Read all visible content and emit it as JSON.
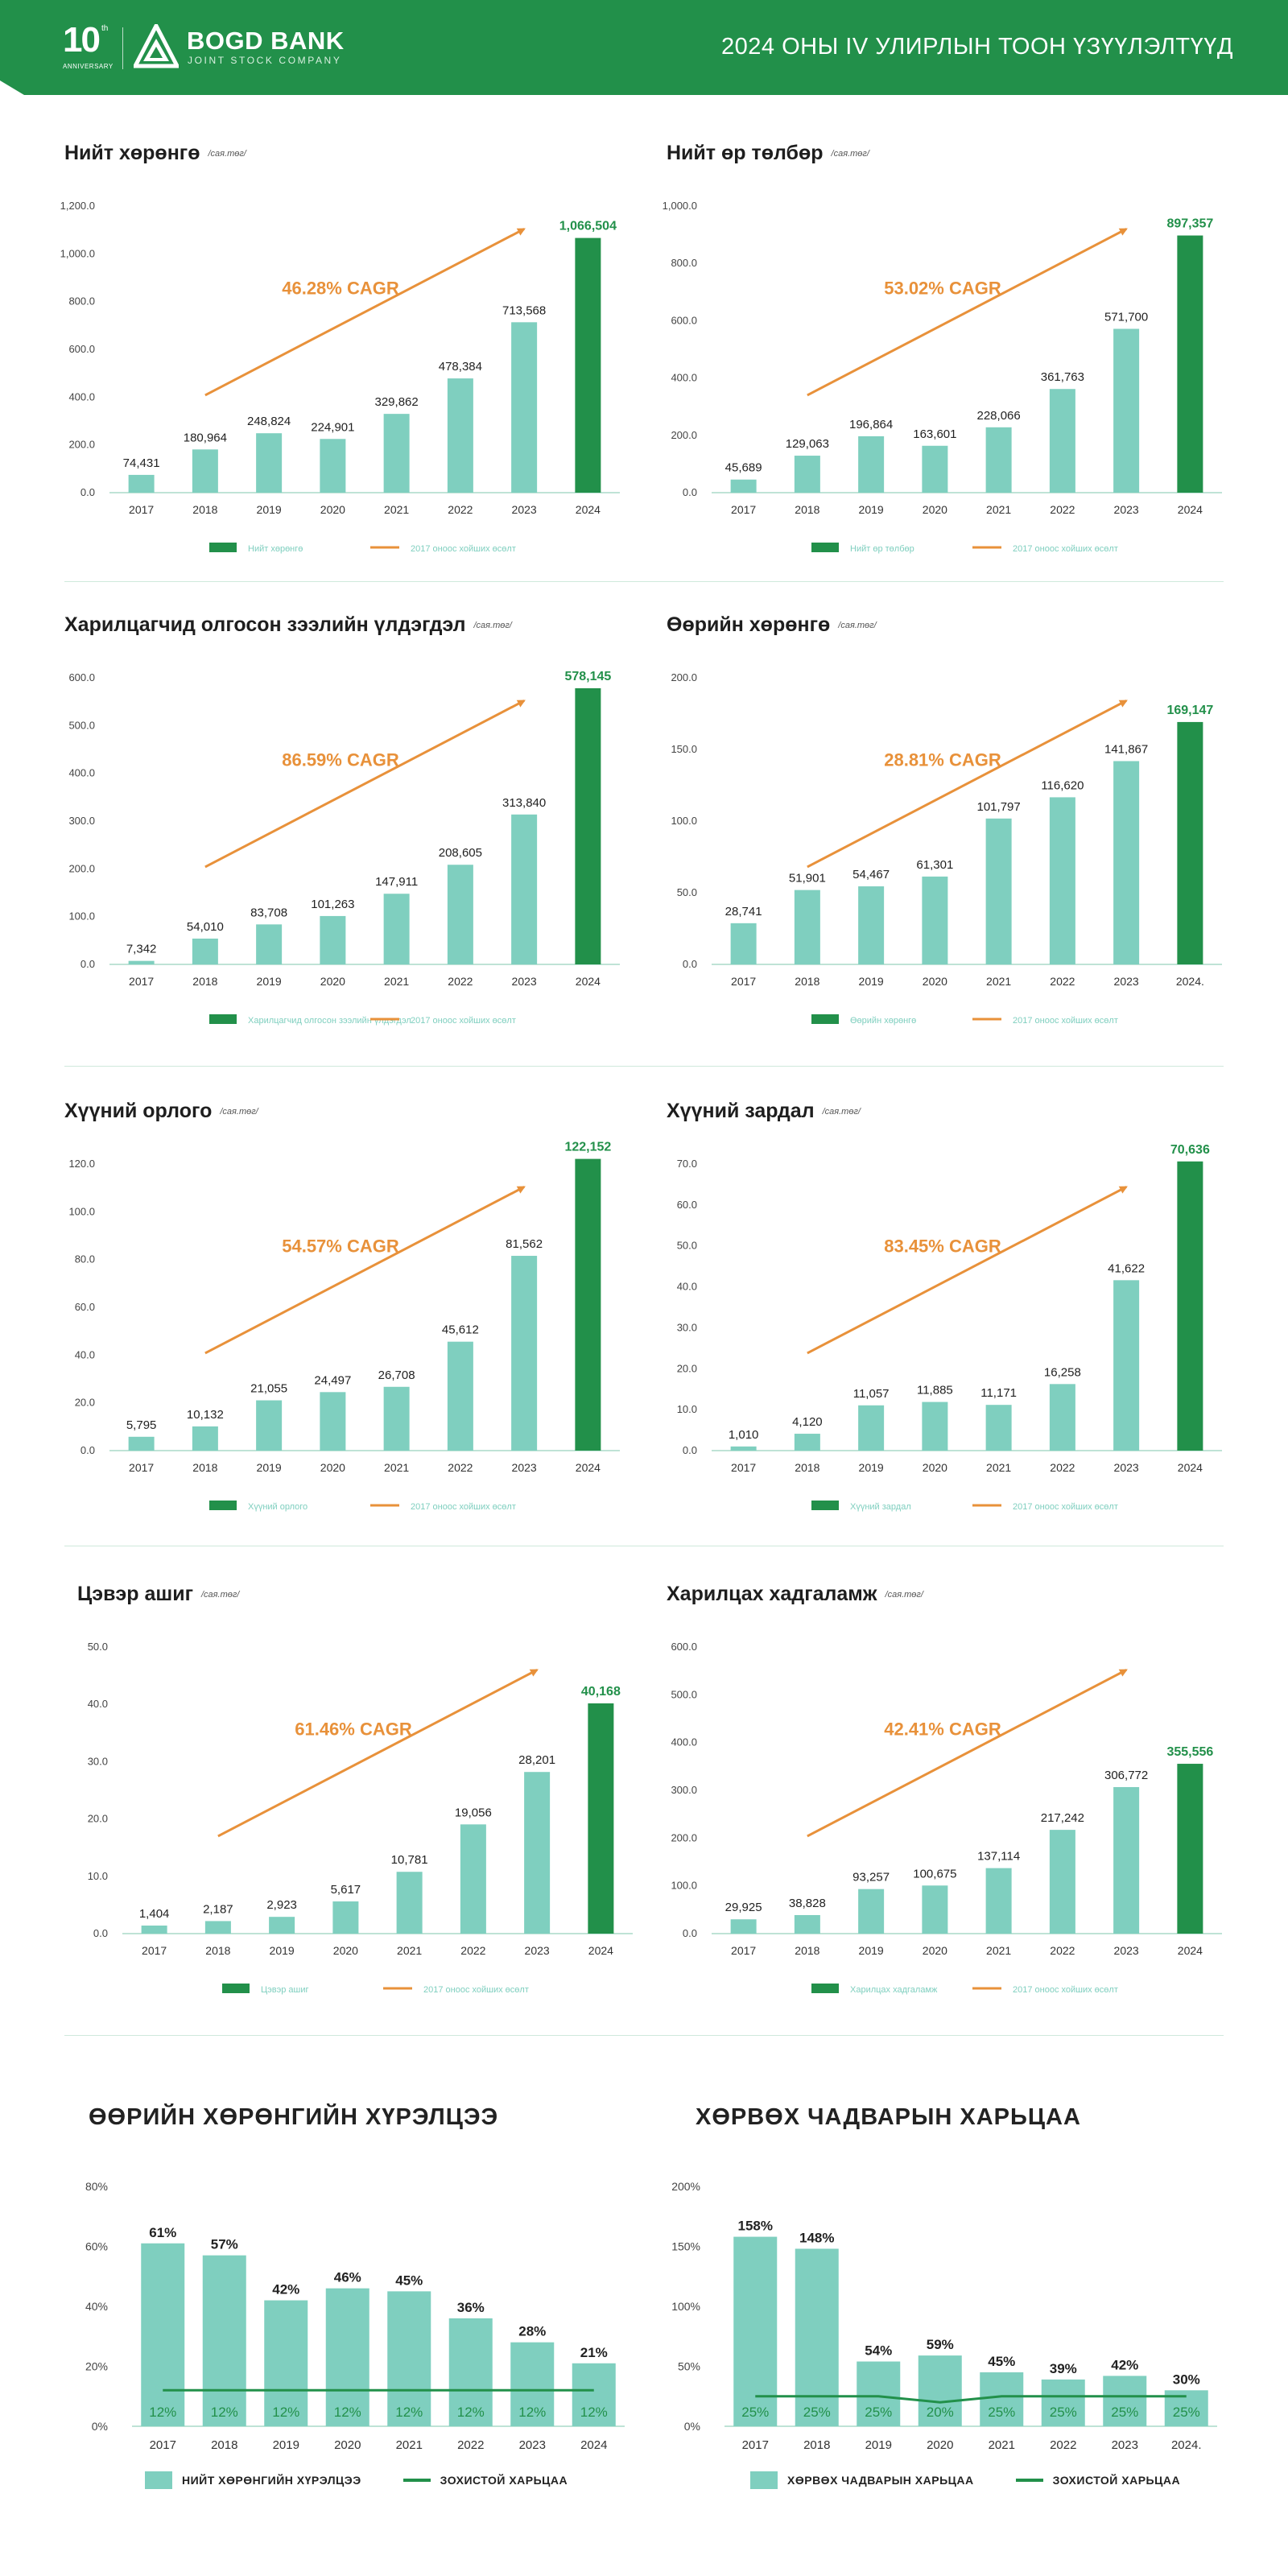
{
  "header": {
    "anniversary_number": "10",
    "anniversary_sup": "th",
    "anniversary_label": "ANNIVERSARY",
    "brand_name": "BOGD BANK",
    "brand_subtitle": "JOINT STOCK COMPANY",
    "report_title": "2024 ОНЫ IV УЛИРЛЫН ТООН ҮЗҮҮЛЭЛТҮҮД"
  },
  "colors": {
    "header_green": "#22904a",
    "bar_teal": "#7fcfbf",
    "bar_highlight": "#22904a",
    "cagr_orange": "#e8913a",
    "separator": "#cfe9dc"
  },
  "panels": [
    {
      "title": "Нийт хөрөнгө",
      "unit": "/сая.төг/",
      "cagr_label": "46.28% CAGR",
      "legend_bar": "Нийт хөрөнгө",
      "legend_line": "2017 оноос хойших өсөлт",
      "chart_data": {
        "type": "bar",
        "categories": [
          "2017",
          "2018",
          "2019",
          "2020",
          "2021",
          "2022",
          "2023",
          "2024"
        ],
        "values": [
          74431,
          180964,
          248824,
          224901,
          329862,
          478384,
          713568,
          1066504
        ],
        "value_labels": [
          "74,431",
          "180,964",
          "248,824",
          "224,901",
          "329,862",
          "478,384",
          "713,568",
          "1,066,504"
        ],
        "yticks": [
          "0.0",
          "200.0",
          "400.0",
          "600.0",
          "800.0",
          "1,000.0",
          "1,200.0"
        ],
        "ylim": [
          0,
          1200000
        ],
        "highlight_index": 7,
        "trend": {
          "from_year": "2017",
          "to_year": "2024",
          "label": "46.28% CAGR"
        }
      }
    },
    {
      "title": "Нийт өр төлбөр",
      "unit": "/сая.төг/",
      "cagr_label": "53.02% CAGR",
      "legend_bar": "Нийт өр төлбөр",
      "legend_line": "2017 оноос хойших өсөлт",
      "chart_data": {
        "type": "bar",
        "categories": [
          "2017",
          "2018",
          "2019",
          "2020",
          "2021",
          "2022",
          "2023",
          "2024"
        ],
        "values": [
          45689,
          129063,
          196864,
          163601,
          228066,
          361763,
          571700,
          897357
        ],
        "value_labels": [
          "45,689",
          "129,063",
          "196,864",
          "163,601",
          "228,066",
          "361,763",
          "571,700",
          "897,357"
        ],
        "yticks": [
          "0.0",
          "200.0",
          "400.0",
          "600.0",
          "800.0",
          "1,000.0"
        ],
        "ylim": [
          0,
          1000000
        ],
        "highlight_index": 7,
        "trend": {
          "from_year": "2017",
          "to_year": "2024",
          "label": "53.02% CAGR"
        }
      }
    },
    {
      "title": "Харилцагчид олгосон зээлийн үлдэгдэл",
      "unit": "/сая.төг/",
      "cagr_label": "86.59% CAGR",
      "legend_bar": "Харилцагчид олгосон зээлийн үлдэгдэл",
      "legend_line": "2017 оноос хойших өсөлт",
      "chart_data": {
        "type": "bar",
        "categories": [
          "2017",
          "2018",
          "2019",
          "2020",
          "2021",
          "2022",
          "2023",
          "2024"
        ],
        "values": [
          7342,
          54010,
          83708,
          101263,
          147911,
          208605,
          313840,
          578145
        ],
        "value_labels": [
          "7,342",
          "54,010",
          "83,708",
          "101,263",
          "147,911",
          "208,605",
          "313,840",
          "578,145"
        ],
        "yticks": [
          "0.0",
          "100.0",
          "200.0",
          "300.0",
          "400.0",
          "500.0",
          "600.0"
        ],
        "ylim": [
          0,
          600000
        ],
        "highlight_index": 7,
        "trend": {
          "from_year": "2017",
          "to_year": "2024",
          "label": "86.59% CAGR"
        }
      }
    },
    {
      "title": "Өөрийн хөрөнгө",
      "unit": "/сая.төг/",
      "cagr_label": "28.81% CAGR",
      "legend_bar": "Өөрийн хөрөнгө",
      "legend_line": "2017 оноос хойших өсөлт",
      "chart_data": {
        "type": "bar",
        "categories": [
          "2017",
          "2018",
          "2019",
          "2020",
          "2021",
          "2022",
          "2023",
          "2024."
        ],
        "values": [
          28741,
          51901,
          54467,
          61301,
          101797,
          116620,
          141867,
          169147
        ],
        "value_labels": [
          "28,741",
          "51,901",
          "54,467",
          "61,301",
          "101,797",
          "116,620",
          "141,867",
          "169,147"
        ],
        "yticks": [
          "0.0",
          "50.0",
          "100.0",
          "150.0",
          "200.0"
        ],
        "ylim": [
          0,
          200000
        ],
        "highlight_index": 7,
        "trend": {
          "from_year": "2017",
          "to_year": "2024.",
          "label": "28.81% CAGR"
        }
      }
    },
    {
      "title": "Хүүний орлого",
      "unit": "/сая.төг/",
      "cagr_label": "54.57% CAGR",
      "legend_bar": "Хүүний орлого",
      "legend_line": "2017 оноос хойших өсөлт",
      "chart_data": {
        "type": "bar",
        "categories": [
          "2017",
          "2018",
          "2019",
          "2020",
          "2021",
          "2022",
          "2023",
          "2024"
        ],
        "values": [
          5795,
          10132,
          21055,
          24497,
          26708,
          45612,
          81562,
          122152
        ],
        "value_labels": [
          "5,795",
          "10,132",
          "21,055",
          "24,497",
          "26,708",
          "45,612",
          "81,562",
          "122,152"
        ],
        "yticks": [
          "0.0",
          "20.0",
          "40.0",
          "60.0",
          "80.0",
          "100.0",
          "120.0"
        ],
        "ylim": [
          0,
          120000
        ],
        "highlight_index": 7,
        "trend": {
          "from_year": "2017",
          "to_year": "2024",
          "label": "54.57% CAGR"
        }
      }
    },
    {
      "title": "Хүүний зардал",
      "unit": "/сая.төг/",
      "cagr_label": "83.45% CAGR",
      "legend_bar": "Хүүний зардал",
      "legend_line": "2017 оноос хойших өсөлт",
      "chart_data": {
        "type": "bar",
        "categories": [
          "2017",
          "2018",
          "2019",
          "2020",
          "2021",
          "2022",
          "2023",
          "2024"
        ],
        "values": [
          1010,
          4120,
          11057,
          11885,
          11171,
          16258,
          41622,
          70636
        ],
        "value_labels": [
          "1,010",
          "4,120",
          "11,057",
          "11,885",
          "11,171",
          "16,258",
          "41,622",
          "70,636"
        ],
        "yticks": [
          "0.0",
          "10.0",
          "20.0",
          "30.0",
          "40.0",
          "50.0",
          "60.0",
          "70.0"
        ],
        "ylim": [
          0,
          70000
        ],
        "highlight_index": 7,
        "trend": {
          "from_year": "2017",
          "to_year": "2024",
          "label": "83.45% CAGR"
        }
      }
    },
    {
      "title": "Цэвэр ашиг",
      "unit": "/сая.төг/",
      "cagr_label": "61.46% CAGR",
      "legend_bar": "Цэвэр ашиг",
      "legend_line": "2017 оноос хойших өсөлт",
      "chart_data": {
        "type": "bar",
        "categories": [
          "2017",
          "2018",
          "2019",
          "2020",
          "2021",
          "2022",
          "2023",
          "2024"
        ],
        "values": [
          1404,
          2187,
          2923,
          5617,
          10781,
          19056,
          28201,
          40168
        ],
        "value_labels": [
          "1,404",
          "2,187",
          "2,923",
          "5,617",
          "10,781",
          "19,056",
          "28,201",
          "40,168"
        ],
        "yticks": [
          "0.0",
          "10.0",
          "20.0",
          "30.0",
          "40.0",
          "50.0"
        ],
        "ylim": [
          0,
          50000
        ],
        "highlight_index": 7,
        "trend": {
          "from_year": "2017",
          "to_year": "2024",
          "label": "61.46% CAGR"
        }
      }
    },
    {
      "title": "Харилцах хадгаламж",
      "unit": "/сая.төг/",
      "cagr_label": "42.41% CAGR",
      "legend_bar": "Харилцах хадгаламж",
      "legend_line": "2017 оноос хойших өсөлт",
      "chart_data": {
        "type": "bar",
        "categories": [
          "2017",
          "2018",
          "2019",
          "2020",
          "2021",
          "2022",
          "2023",
          "2024"
        ],
        "values": [
          29925,
          38828,
          93257,
          100675,
          137114,
          217242,
          306772,
          355556
        ],
        "value_labels": [
          "29,925",
          "38,828",
          "93,257",
          "100,675",
          "137,114",
          "217,242",
          "306,772",
          "355,556"
        ],
        "yticks": [
          "0.0",
          "100.0",
          "200.0",
          "300.0",
          "400.0",
          "500.0",
          "600.0"
        ],
        "ylim": [
          0,
          600000
        ],
        "highlight_index": 7,
        "trend": {
          "from_year": "2017",
          "to_year": "2024",
          "label": "42.41% CAGR"
        }
      }
    }
  ],
  "ratios": [
    {
      "title": "ӨӨРИЙН ХӨРӨНГИЙН ХҮРЭЛЦЭЭ",
      "legend_bar": "НИЙТ ХӨРӨНГИЙН ХҮРЭЛЦЭЭ",
      "legend_line": "ЗОХИСТОЙ ХАРЬЦАА",
      "chart_data": {
        "type": "bar",
        "categories": [
          "2017",
          "2018",
          "2019",
          "2020",
          "2021",
          "2022",
          "2023",
          "2024"
        ],
        "values": [
          61,
          57,
          42,
          46,
          45,
          36,
          28,
          21
        ],
        "value_labels": [
          "61%",
          "57%",
          "42%",
          "46%",
          "45%",
          "36%",
          "28%",
          "21%"
        ],
        "norm_values": [
          12,
          12,
          12,
          12,
          12,
          12,
          12,
          12
        ],
        "norm_labels": [
          "12%",
          "12%",
          "12%",
          "12%",
          "12%",
          "12%",
          "12%",
          "12%"
        ],
        "yticks": [
          "0%",
          "20%",
          "40%",
          "60%",
          "80%"
        ],
        "ylim": [
          0,
          80
        ]
      }
    },
    {
      "title": "ХӨРВӨХ ЧАДВАРЫН ХАРЬЦАА",
      "legend_bar": "ХӨРВӨХ ЧАДВАРЫН ХАРЬЦАА",
      "legend_line": "ЗОХИСТОЙ ХАРЬЦАА",
      "chart_data": {
        "type": "bar",
        "categories": [
          "2017",
          "2018",
          "2019",
          "2020",
          "2021",
          "2022",
          "2023",
          "2024."
        ],
        "values": [
          158,
          148,
          54,
          59,
          45,
          39,
          42,
          30
        ],
        "value_labels": [
          "158%",
          "148%",
          "54%",
          "59%",
          "45%",
          "39%",
          "42%",
          "30%"
        ],
        "norm_values": [
          25,
          25,
          25,
          20,
          25,
          25,
          25,
          25
        ],
        "norm_labels": [
          "25%",
          "25%",
          "25%",
          "20%",
          "25%",
          "25%",
          "25%",
          "25%"
        ],
        "yticks": [
          "0%",
          "50%",
          "100%",
          "150%",
          "200%"
        ],
        "ylim": [
          0,
          200
        ]
      }
    }
  ]
}
